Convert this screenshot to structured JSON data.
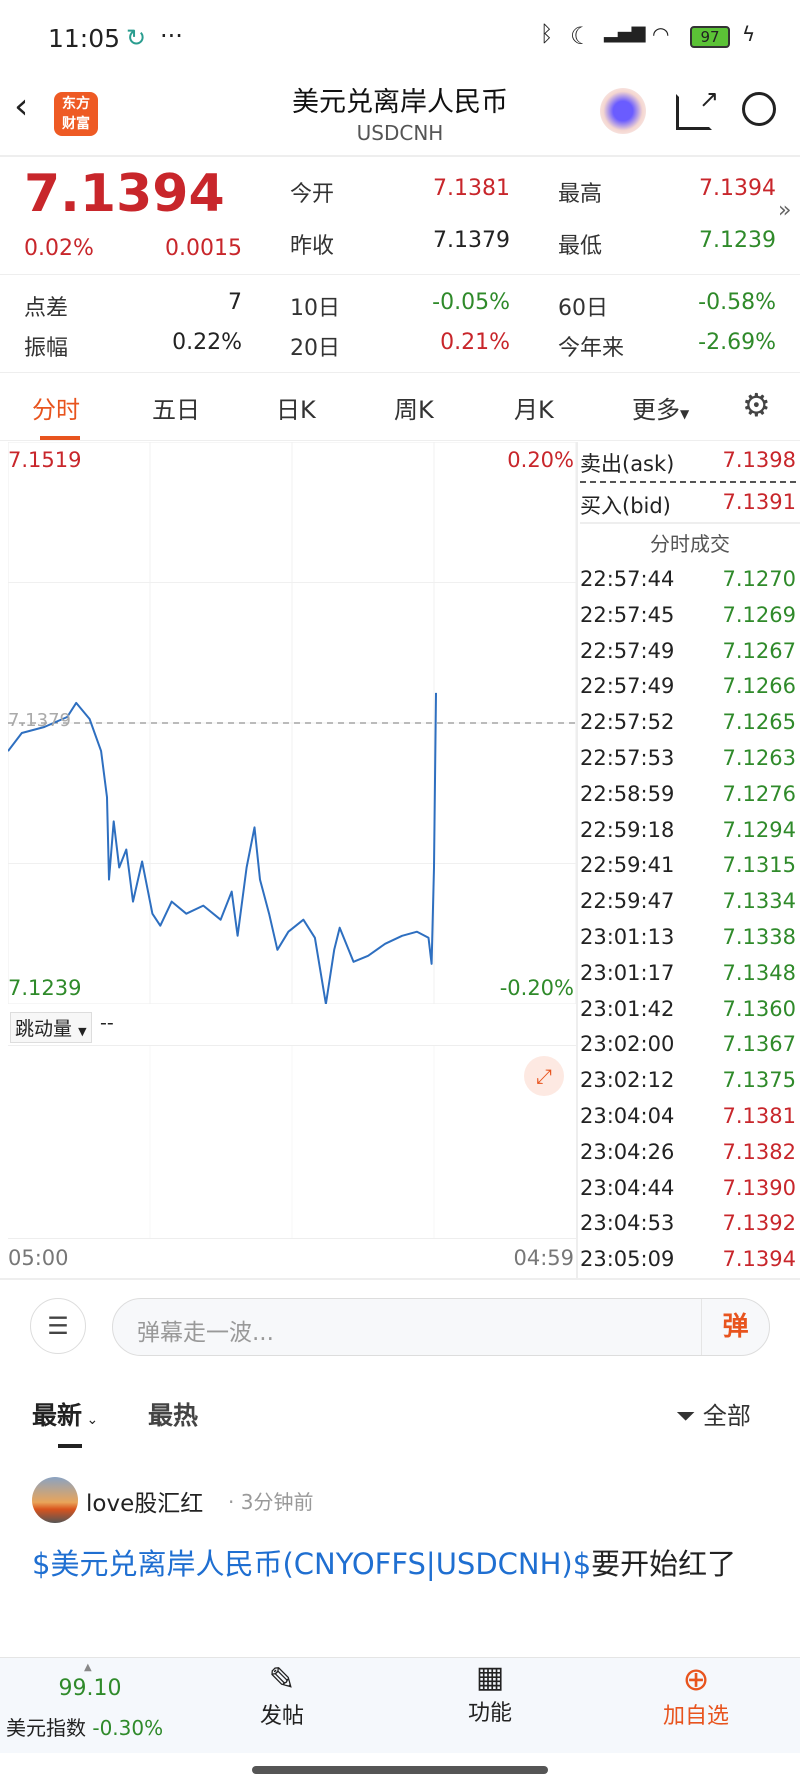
{
  "status_bar": {
    "time": "11:05",
    "battery": "97"
  },
  "header": {
    "title": "美元兑离岸人民币",
    "subtitle": "USDCNH",
    "logo_text": [
      "东方",
      "财富"
    ]
  },
  "quote": {
    "price": "7.1394",
    "change_pct": "0.02%",
    "change": "0.0015",
    "open_label": "今开",
    "open": "7.1381",
    "prev_close_label": "昨收",
    "prev_close": "7.1379",
    "high_label": "最高",
    "high": "7.1394",
    "low_label": "最低",
    "low": "7.1239",
    "spread_label": "点差",
    "spread": "7",
    "amplitude_label": "振幅",
    "amplitude": "0.22%",
    "d10_label": "10日",
    "d10": "-0.05%",
    "d20_label": "20日",
    "d20": "0.21%",
    "d60_label": "60日",
    "d60": "-0.58%",
    "ytd_label": "今年来",
    "ytd": "-2.69%"
  },
  "tabs": [
    "分时",
    "五日",
    "日K",
    "周K",
    "月K",
    "更多"
  ],
  "active_tab": 0,
  "orderbook": {
    "ask_label": "卖出(ask)",
    "ask": "7.1398",
    "bid_label": "买入(bid)",
    "bid": "7.1391",
    "trades_title": "分时成交"
  },
  "trades": [
    {
      "time": "22:57:44",
      "price": "7.1270",
      "dir": "down"
    },
    {
      "time": "22:57:45",
      "price": "7.1269",
      "dir": "down"
    },
    {
      "time": "22:57:49",
      "price": "7.1267",
      "dir": "down"
    },
    {
      "time": "22:57:49",
      "price": "7.1266",
      "dir": "down"
    },
    {
      "time": "22:57:52",
      "price": "7.1265",
      "dir": "down"
    },
    {
      "time": "22:57:53",
      "price": "7.1263",
      "dir": "down"
    },
    {
      "time": "22:58:59",
      "price": "7.1276",
      "dir": "down"
    },
    {
      "time": "22:59:18",
      "price": "7.1294",
      "dir": "down"
    },
    {
      "time": "22:59:41",
      "price": "7.1315",
      "dir": "down"
    },
    {
      "time": "22:59:47",
      "price": "7.1334",
      "dir": "down"
    },
    {
      "time": "23:01:13",
      "price": "7.1338",
      "dir": "down"
    },
    {
      "time": "23:01:17",
      "price": "7.1348",
      "dir": "down"
    },
    {
      "time": "23:01:42",
      "price": "7.1360",
      "dir": "down"
    },
    {
      "time": "23:02:00",
      "price": "7.1367",
      "dir": "down"
    },
    {
      "time": "23:02:12",
      "price": "7.1375",
      "dir": "down"
    },
    {
      "time": "23:04:04",
      "price": "7.1381",
      "dir": "up"
    },
    {
      "time": "23:04:26",
      "price": "7.1382",
      "dir": "up"
    },
    {
      "time": "23:04:44",
      "price": "7.1390",
      "dir": "up"
    },
    {
      "time": "23:04:53",
      "price": "7.1392",
      "dir": "up"
    },
    {
      "time": "23:05:09",
      "price": "7.1394",
      "dir": "up"
    }
  ],
  "chart_data": {
    "type": "line",
    "y_top_label": "7.1519",
    "y_bottom_label": "7.1239",
    "y_mid_label": "7.1379",
    "pct_top_label": "0.20%",
    "pct_bottom_label": "-0.20%",
    "ylim": [
      7.1239,
      7.1519
    ],
    "baseline": 7.1379,
    "x_start_label": "05:00",
    "x_end_label": "04:59",
    "line_color": "#2e6fc0",
    "points": [
      [
        "05:00",
        7.1365
      ],
      [
        "05:35",
        7.1374
      ],
      [
        "06:32",
        7.1377
      ],
      [
        "07:30",
        7.1382
      ],
      [
        "07:53",
        7.1389
      ],
      [
        "08:27",
        7.1381
      ],
      [
        "08:56",
        7.1365
      ],
      [
        "09:11",
        7.1342
      ],
      [
        "09:16",
        7.1301
      ],
      [
        "09:28",
        7.133
      ],
      [
        "09:42",
        7.1307
      ],
      [
        "10:00",
        7.1316
      ],
      [
        "10:17",
        7.129
      ],
      [
        "10:40",
        7.131
      ],
      [
        "11:06",
        7.1284
      ],
      [
        "11:26",
        7.1278
      ],
      [
        "11:55",
        7.129
      ],
      [
        "12:32",
        7.1284
      ],
      [
        "13:15",
        7.1288
      ],
      [
        "13:59",
        7.1281
      ],
      [
        "14:27",
        7.1295
      ],
      [
        "14:42",
        7.1273
      ],
      [
        "15:05",
        7.1307
      ],
      [
        "15:25",
        7.1327
      ],
      [
        "15:39",
        7.1301
      ],
      [
        "16:02",
        7.1284
      ],
      [
        "16:23",
        7.1266
      ],
      [
        "16:51",
        7.1275
      ],
      [
        "17:29",
        7.1281
      ],
      [
        "17:58",
        7.1272
      ],
      [
        "18:26",
        7.1239
      ],
      [
        "18:47",
        7.1266
      ],
      [
        "19:01",
        7.1277
      ],
      [
        "19:36",
        7.126
      ],
      [
        "20:13",
        7.1263
      ],
      [
        "20:56",
        7.1269
      ],
      [
        "21:39",
        7.1273
      ],
      [
        "22:17",
        7.1275
      ],
      [
        "22:46",
        7.1272
      ],
      [
        "22:54",
        7.1259
      ],
      [
        "23:00",
        7.1307
      ],
      [
        "23:05",
        7.1394
      ]
    ]
  },
  "sub_chart": {
    "selector": "跳动量",
    "value": "--"
  },
  "danmu": {
    "placeholder": "弹幕走一波...",
    "send": "弹"
  },
  "feed": {
    "tabs": [
      "最新",
      "最热"
    ],
    "filter": "全部",
    "post": {
      "user": "love股汇红",
      "time": "· 3分钟前",
      "link": "$美元兑离岸人民币(CNYOFFS|USDCNH)$",
      "text": "要开始红了"
    }
  },
  "bottom_nav": {
    "index_value": "99.10",
    "index_name": "美元指数",
    "index_change": "-0.30%",
    "post": "发帖",
    "functions": "功能",
    "add": "加自选"
  },
  "colors": {
    "up": "#c8262b",
    "down": "#2f8a2a",
    "accent": "#e8541e",
    "link": "#1f6fd1"
  }
}
